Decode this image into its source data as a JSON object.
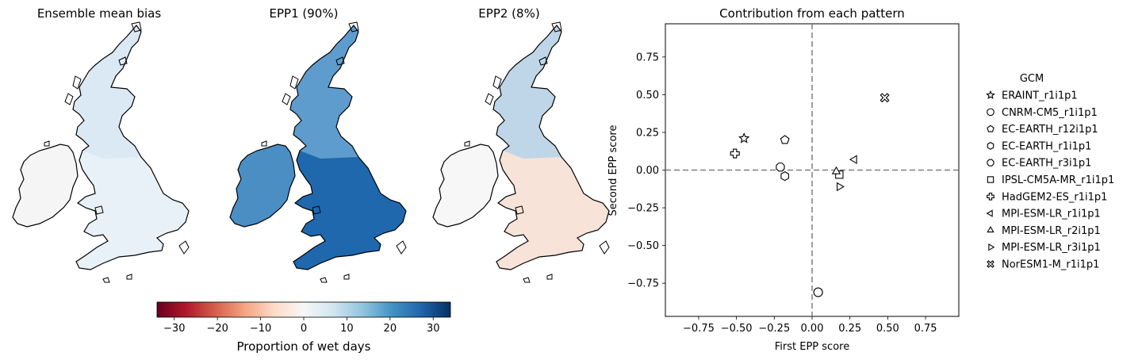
{
  "maps": {
    "panels": [
      {
        "title": "Ensemble mean bias"
      },
      {
        "title": "EPP1 (90%)"
      },
      {
        "title": "EPP2 (8%)"
      }
    ],
    "fill_colors": [
      "#e8f1f8",
      "#1f68ae",
      "#f7e3d7"
    ],
    "ireland_colors": [
      "#f5f5f5",
      "#4a8ec4",
      "#f7f7f7"
    ],
    "north_colors": [
      "#d8e8f4",
      "#6ba6d3",
      "#b4d4ea"
    ]
  },
  "colorbar": {
    "label": "Proportion of wet days",
    "range": [
      -34,
      34
    ],
    "ticks": [
      -30,
      -20,
      -10,
      0,
      10,
      20,
      30
    ],
    "tick_labels": [
      "−30",
      "−20",
      "−10",
      "0",
      "10",
      "20",
      "30"
    ],
    "colors": [
      "#67001f",
      "#b2182b",
      "#d6604d",
      "#f4a582",
      "#fddbc7",
      "#f7f7f7",
      "#d1e5f0",
      "#92c5de",
      "#4393c3",
      "#2166ac",
      "#053061"
    ]
  },
  "chart_data": {
    "type": "scatter",
    "title": "Contribution from each pattern",
    "xlabel": "First EPP score",
    "ylabel": "Second EPP score",
    "xlim": [
      -0.97,
      0.97
    ],
    "ylim": [
      -0.97,
      0.97
    ],
    "x_ticks": [
      -0.75,
      -0.5,
      -0.25,
      0.0,
      0.25,
      0.5,
      0.75
    ],
    "x_tick_labels": [
      "−0.75",
      "−0.50",
      "−0.25",
      "0.00",
      "0.25",
      "0.50",
      "0.75"
    ],
    "y_ticks": [
      0.75,
      0.5,
      0.25,
      0.0,
      -0.25,
      -0.5,
      -0.75
    ],
    "y_tick_labels": [
      "0.75",
      "0.50",
      "0.25",
      "0.00",
      "−0.25",
      "−0.50",
      "−0.75"
    ],
    "zero_lines": true,
    "legend_title": "GCM",
    "legend_placement": "right, outside",
    "series": [
      {
        "name": "ERAINT_r1i1p1",
        "marker": "star",
        "x": -0.45,
        "y": 0.21
      },
      {
        "name": "CNRM-CM5_r1i1p1",
        "marker": "circle",
        "x": 0.04,
        "y": -0.81
      },
      {
        "name": "EC-EARTH_r12i1p1",
        "marker": "pentagon",
        "x": -0.18,
        "y": 0.2
      },
      {
        "name": "EC-EARTH_r1i1p1",
        "marker": "hexagon",
        "x": -0.18,
        "y": -0.04
      },
      {
        "name": "EC-EARTH_r3i1p1",
        "marker": "octagon",
        "x": -0.21,
        "y": 0.02
      },
      {
        "name": "IPSL-CM5A-MR_r1i1p1",
        "marker": "square",
        "x": 0.18,
        "y": -0.03
      },
      {
        "name": "HadGEM2-ES_r1i1p1",
        "marker": "plus",
        "x": -0.51,
        "y": 0.11
      },
      {
        "name": "MPI-ESM-LR_r1i1p1",
        "marker": "triangle-left",
        "x": 0.28,
        "y": 0.07
      },
      {
        "name": "MPI-ESM-LR_r2i1p1",
        "marker": "triangle-up",
        "x": 0.16,
        "y": -0.01
      },
      {
        "name": "MPI-ESM-LR_r3i1p1",
        "marker": "triangle-right",
        "x": 0.18,
        "y": -0.11
      },
      {
        "name": "NorESM1-M_r1i1p1",
        "marker": "x-filled",
        "x": 0.48,
        "y": 0.48
      }
    ]
  }
}
